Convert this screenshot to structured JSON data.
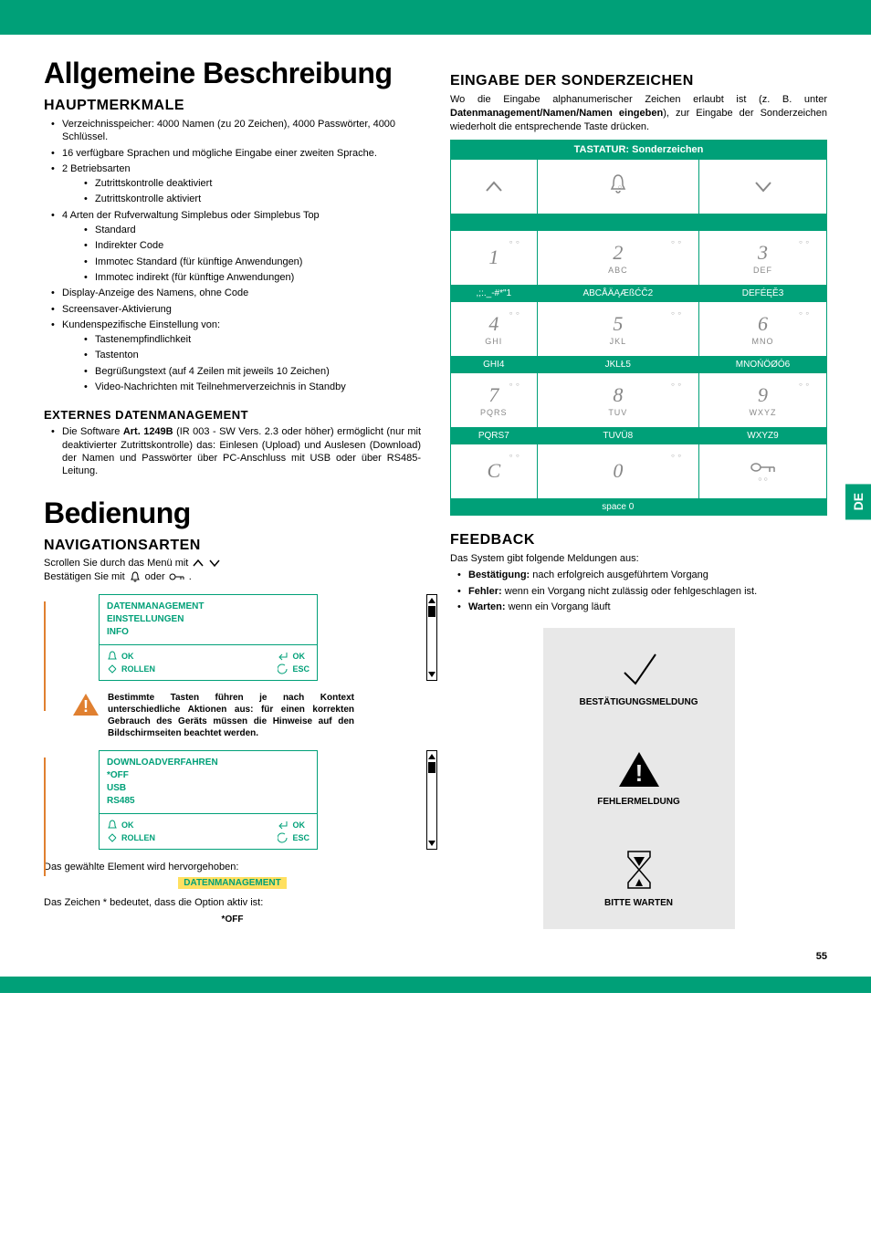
{
  "theme": {
    "primary": "#00a078",
    "warn": "#e08030",
    "highlight_bg": "#ffe060",
    "card_bg": "#e8e8e8",
    "text": "#000000",
    "key_color": "#888888"
  },
  "side_tab": "DE",
  "page_number": "55",
  "left": {
    "h1_1": "Allgemeine Beschreibung",
    "h2_haupt": "HAUPTMERKMALE",
    "haupt": [
      "Verzeichnisspeicher: 4000 Namen (zu 20 Zeichen), 4000 Passwörter, 4000 Schlüssel.",
      "16 verfügbare Sprachen und mögliche Eingabe einer zweiten Sprache.",
      "2 Betriebsarten",
      "4 Arten der Rufverwaltung Simplebus oder Simplebus Top",
      "Display-Anzeige des Namens, ohne Code",
      "Screensaver-Aktivierung",
      "Kundenspezifische Einstellung von:"
    ],
    "haupt_sub_2": [
      "Zutrittskontrolle deaktiviert",
      "Zutrittskontrolle aktiviert"
    ],
    "haupt_sub_3": [
      "Standard",
      "Indirekter Code",
      "Immotec Standard (für künftige Anwendungen)",
      "Immotec indirekt (für künftige Anwendungen)"
    ],
    "haupt_sub_6": [
      "Tastenempfindlichkeit",
      "Tastenton",
      "Begrüßungstext (auf 4 Zeilen mit jeweils 10 Zeichen)",
      "Video-Nachrichten mit Teilnehmerverzeichnis in Standby"
    ],
    "h3_ext": "EXTERNES DATENMANAGEMENT",
    "ext_text_pre": "Die Software ",
    "ext_text_bold": "Art. 1249B",
    "ext_text_post": " (IR 003 - SW Vers. 2.3 oder höher) ermöglicht (nur mit deaktivierter Zutrittskontrolle) das: Einlesen (Upload) und Auslesen (Download) der Namen und Passwörter über PC-Anschluss mit USB oder über RS485-Leitung.",
    "h1_2": "Bedienung",
    "h2_nav": "NAVIGATIONSARTEN",
    "nav_scroll": "Scrollen Sie durch das Menü mit",
    "nav_confirm_pre": "Bestätigen Sie mit ",
    "nav_confirm_mid": " oder ",
    "menu1": {
      "l1": "DATENMANAGEMENT",
      "l2": "EINSTELLUNGEN",
      "l3": "INFO"
    },
    "ok": "OK",
    "rollen": "ROLLEN",
    "esc": "ESC",
    "warn_text": "Bestimmte Tasten führen je nach Kontext unterschiedliche Aktionen aus: für einen korrekten Gebrauch des Geräts müssen die Hinweise auf den Bildschirmseiten beachtet werden.",
    "menu2": {
      "l1": "DOWNLOADVERFAHREN",
      "l2": "*OFF",
      "l3": "USB",
      "l4": "RS485"
    },
    "selected_text": "Das gewählte Element wird hervorgehoben:",
    "selected_highlight": "DATENMANAGEMENT",
    "asterisk_text": "Das Zeichen * bedeutet, dass die Option aktiv ist:",
    "asterisk_value": "*OFF"
  },
  "right": {
    "h2_eingabe": "EINGABE DER SONDERZEICHEN",
    "eingabe_p_pre": "Wo die Eingabe alphanumerischer Zeichen erlaubt ist (z. B. unter ",
    "eingabe_p_bold": "Datenmanagement/Namen/Namen eingeben",
    "eingabe_p_post": "), zur Eingabe der Sonderzeichen wiederholt die entsprechende Taste drücken.",
    "keypad_header": "TASTATUR: Sonderzeichen",
    "keypad": [
      {
        "row_type": "key",
        "cells": [
          {
            "digit": "",
            "letters": "",
            "icon": "up"
          },
          {
            "digit": "",
            "letters": "",
            "icon": "bell"
          },
          {
            "digit": "",
            "letters": "",
            "icon": "down"
          }
        ]
      },
      {
        "row_type": "label",
        "cells": [
          "",
          "",
          ""
        ]
      },
      {
        "row_type": "key",
        "cells": [
          {
            "digit": "1",
            "letters": ""
          },
          {
            "digit": "2",
            "letters": "ABC"
          },
          {
            "digit": "3",
            "letters": "DEF"
          }
        ]
      },
      {
        "row_type": "label",
        "cells": [
          ",;:._-#*\"1",
          "ABCÅÄĄÆßĆČ2",
          "DEFÉĘĚ3"
        ]
      },
      {
        "row_type": "key",
        "cells": [
          {
            "digit": "4",
            "letters": "GHI"
          },
          {
            "digit": "5",
            "letters": "JKL"
          },
          {
            "digit": "6",
            "letters": "MNO"
          }
        ]
      },
      {
        "row_type": "label",
        "cells": [
          "GHI4",
          "JKLŁ5",
          "MNOŃÖØÓ6"
        ]
      },
      {
        "row_type": "key",
        "cells": [
          {
            "digit": "7",
            "letters": "PQRS"
          },
          {
            "digit": "8",
            "letters": "TUV"
          },
          {
            "digit": "9",
            "letters": "WXYZ"
          }
        ]
      },
      {
        "row_type": "label",
        "cells": [
          "PQRS7",
          "TUVÜ8",
          "WXYZ9"
        ]
      },
      {
        "row_type": "key",
        "cells": [
          {
            "digit": "C",
            "letters": ""
          },
          {
            "digit": "0",
            "letters": ""
          },
          {
            "digit": "",
            "letters": "",
            "icon": "key"
          }
        ]
      },
      {
        "row_type": "label",
        "cells": [
          "",
          "space 0",
          ""
        ]
      }
    ],
    "h2_feedback": "FEEDBACK",
    "feedback_intro": "Das System gibt folgende Meldungen aus:",
    "feedback_items": [
      {
        "bold": "Bestätigung:",
        "rest": " nach erfolgreich ausgeführtem Vorgang"
      },
      {
        "bold": "Fehler:",
        "rest": " wenn ein Vorgang nicht zulässig oder fehlgeschlagen ist."
      },
      {
        "bold": "Warten:",
        "rest": " wenn ein Vorgang läuft"
      }
    ],
    "cards": [
      {
        "icon": "check",
        "label": "BESTÄTIGUNGSMELDUNG"
      },
      {
        "icon": "warn",
        "label": "FEHLERMELDUNG"
      },
      {
        "icon": "hourglass",
        "label": "BITTE WARTEN"
      }
    ]
  }
}
